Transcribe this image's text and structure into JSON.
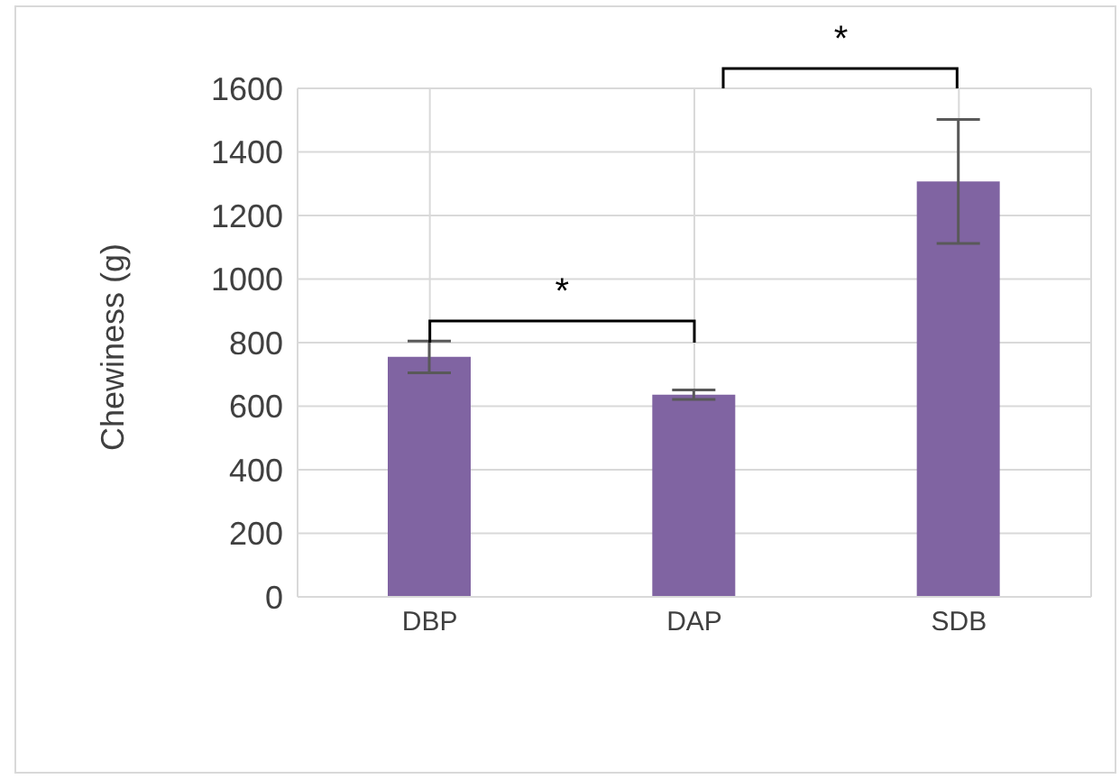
{
  "chart_data": {
    "type": "bar",
    "ylabel": "Chewiness (g)",
    "categories": [
      "DBP",
      "DAP",
      "SDB"
    ],
    "values": [
      755,
      636,
      1307
    ],
    "errors": [
      50,
      15,
      195
    ],
    "color": "#8064a2",
    "ylim": [
      0,
      1600
    ],
    "yticks": [
      0,
      200,
      400,
      600,
      800,
      1000,
      1200,
      1400,
      1600
    ],
    "grid": true,
    "annotations": [
      "*",
      "*"
    ]
  }
}
